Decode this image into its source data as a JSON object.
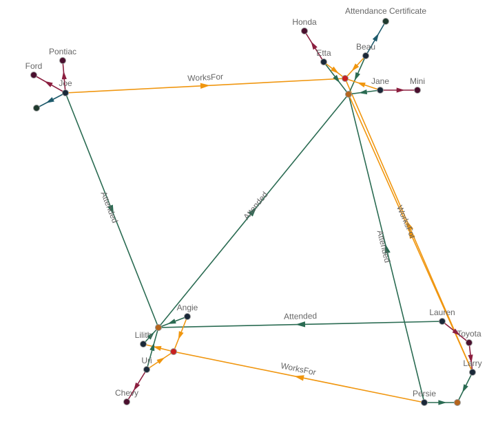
{
  "colors": {
    "worksfor": "#f0960f",
    "attended": "#2a6b52",
    "owns": "#8b1e3f",
    "certificate": "#1d5a6b",
    "node_person": "#1a2838",
    "node_car": "#4a0f2e",
    "node_hub_company": "#c8201f",
    "node_hub_school": "#b5651d",
    "node_doc": "#1f3a2e"
  },
  "nodes": [
    {
      "id": "joe",
      "label": "Joe",
      "kind": "person"
    },
    {
      "id": "ford",
      "label": "Ford",
      "kind": "car"
    },
    {
      "id": "pontiac",
      "label": "Pontiac",
      "kind": "car"
    },
    {
      "id": "joedoc",
      "label": "",
      "kind": "doc"
    },
    {
      "id": "honda",
      "label": "Honda",
      "kind": "car"
    },
    {
      "id": "etta",
      "label": "Etta",
      "kind": "person"
    },
    {
      "id": "cert",
      "label": "Attendance Certificate",
      "kind": "doc"
    },
    {
      "id": "beau",
      "label": "Beau",
      "kind": "person"
    },
    {
      "id": "co1",
      "label": "",
      "kind": "hub_company"
    },
    {
      "id": "sc1",
      "label": "",
      "kind": "hub_school"
    },
    {
      "id": "jane",
      "label": "Jane",
      "kind": "person"
    },
    {
      "id": "mini",
      "label": "Mini",
      "kind": "car"
    },
    {
      "id": "angie",
      "label": "Angie",
      "kind": "person"
    },
    {
      "id": "sc2",
      "label": "",
      "kind": "hub_school"
    },
    {
      "id": "lilith",
      "label": "Lilith",
      "kind": "person"
    },
    {
      "id": "co2",
      "label": "",
      "kind": "hub_company"
    },
    {
      "id": "uri",
      "label": "Uri",
      "kind": "person"
    },
    {
      "id": "chevy",
      "label": "Chevy",
      "kind": "car"
    },
    {
      "id": "lauren",
      "label": "Lauren",
      "kind": "person"
    },
    {
      "id": "toyota",
      "label": "Toyota",
      "kind": "car"
    },
    {
      "id": "larry",
      "label": "Larry",
      "kind": "person"
    },
    {
      "id": "persie",
      "label": "Persie",
      "kind": "person"
    },
    {
      "id": "sc3",
      "label": "",
      "kind": "hub_school"
    }
  ],
  "edges": [
    {
      "from": "joe",
      "to": "ford",
      "type": "owns",
      "label": ""
    },
    {
      "from": "joe",
      "to": "pontiac",
      "type": "owns",
      "label": ""
    },
    {
      "from": "joe",
      "to": "joedoc",
      "type": "certificate",
      "label": ""
    },
    {
      "from": "joe",
      "to": "co1",
      "type": "worksfor",
      "label": "WorksFor"
    },
    {
      "from": "joe",
      "to": "sc2",
      "type": "attended",
      "label": "Attended"
    },
    {
      "from": "sc2",
      "to": "sc1",
      "type": "attended",
      "label": "Attended"
    },
    {
      "from": "persie",
      "to": "sc1",
      "type": "attended",
      "label": "Attended"
    },
    {
      "from": "larry",
      "to": "co1",
      "type": "worksfor",
      "label": "WorksFor"
    },
    {
      "from": "larry",
      "to": "sc1",
      "type": "worksfor",
      "label": ""
    },
    {
      "from": "lauren",
      "to": "sc2",
      "type": "attended",
      "label": "Attended"
    },
    {
      "from": "persie",
      "to": "co2",
      "type": "worksfor",
      "label": "WorksFor"
    },
    {
      "from": "etta",
      "to": "honda",
      "type": "owns",
      "label": ""
    },
    {
      "from": "etta",
      "to": "sc1",
      "type": "attended",
      "label": ""
    },
    {
      "from": "etta",
      "to": "co1",
      "type": "worksfor",
      "label": ""
    },
    {
      "from": "beau",
      "to": "cert",
      "type": "certificate",
      "label": ""
    },
    {
      "from": "beau",
      "to": "co1",
      "type": "worksfor",
      "label": ""
    },
    {
      "from": "beau",
      "to": "sc1",
      "type": "attended",
      "label": ""
    },
    {
      "from": "jane",
      "to": "sc1",
      "type": "attended",
      "label": ""
    },
    {
      "from": "jane",
      "to": "co1",
      "type": "worksfor",
      "label": ""
    },
    {
      "from": "jane",
      "to": "mini",
      "type": "owns",
      "label": ""
    },
    {
      "from": "angie",
      "to": "sc2",
      "type": "attended",
      "label": ""
    },
    {
      "from": "angie",
      "to": "co2",
      "type": "worksfor",
      "label": ""
    },
    {
      "from": "lilith",
      "to": "sc2",
      "type": "attended",
      "label": ""
    },
    {
      "from": "co2",
      "to": "lilith",
      "type": "worksfor",
      "label": ""
    },
    {
      "from": "uri",
      "to": "sc2",
      "type": "attended",
      "label": ""
    },
    {
      "from": "uri",
      "to": "co2",
      "type": "worksfor",
      "label": ""
    },
    {
      "from": "uri",
      "to": "chevy",
      "type": "owns",
      "label": ""
    },
    {
      "from": "lauren",
      "to": "toyota",
      "type": "owns",
      "label": ""
    },
    {
      "from": "toyota",
      "to": "larry",
      "type": "owns",
      "label": ""
    },
    {
      "from": "larry",
      "to": "sc3",
      "type": "attended",
      "label": ""
    },
    {
      "from": "persie",
      "to": "sc3",
      "type": "attended",
      "label": ""
    }
  ]
}
